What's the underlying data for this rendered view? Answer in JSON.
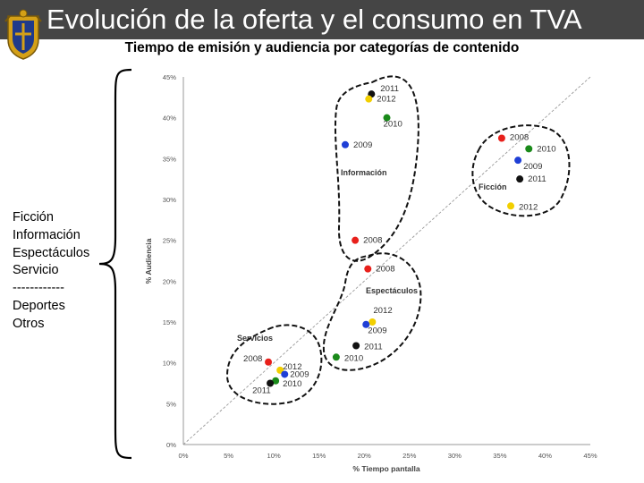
{
  "header": {
    "title": "Evolución de la oferta y el consumo en TVA",
    "subtitle": "Tiempo de emisión y audiencia por categorías de contenido"
  },
  "sidebar": {
    "items": [
      "Ficción",
      "Información",
      "Espectáculos",
      "Servicio",
      "------------",
      "Deportes",
      "Otros"
    ]
  },
  "colors": {
    "title_bar": "#454545",
    "2008": "#e8201b",
    "2009": "#1f3fd6",
    "2010": "#1a8a1a",
    "2011": "#111111",
    "2012": "#f2cf00"
  },
  "chart_data": {
    "type": "scatter",
    "xlabel": "% Tiempo pantalla",
    "ylabel": "% Audiencia",
    "xlim": [
      0,
      45
    ],
    "ylim": [
      0,
      45
    ],
    "xticks": [
      "0%",
      "5%",
      "10%",
      "15%",
      "20%",
      "25%",
      "30%",
      "35%",
      "40%",
      "45%"
    ],
    "yticks": [
      "0%",
      "5%",
      "10%",
      "15%",
      "20%",
      "25%",
      "30%",
      "35%",
      "40%",
      "45%"
    ],
    "grid": false,
    "reference_line": "diagonal y = x",
    "groups": [
      {
        "name": "Información",
        "points": [
          {
            "year": "2011",
            "x": 20.8,
            "y": 42.9
          },
          {
            "year": "2012",
            "x": 20.5,
            "y": 42.3
          },
          {
            "year": "2010",
            "x": 22.5,
            "y": 40.0
          },
          {
            "year": "2009",
            "x": 17.9,
            "y": 36.7
          },
          {
            "year": "2008",
            "x": 19.0,
            "y": 25.0
          }
        ]
      },
      {
        "name": "Ficción",
        "points": [
          {
            "year": "2008",
            "x": 35.2,
            "y": 37.5
          },
          {
            "year": "2010",
            "x": 38.2,
            "y": 36.2
          },
          {
            "year": "2009",
            "x": 37.0,
            "y": 34.8
          },
          {
            "year": "2011",
            "x": 37.2,
            "y": 32.5
          },
          {
            "year": "2012",
            "x": 36.2,
            "y": 29.2
          }
        ]
      },
      {
        "name": "Espectáculos",
        "points": [
          {
            "year": "2008",
            "x": 20.4,
            "y": 21.5
          },
          {
            "year": "2012",
            "x": 20.9,
            "y": 15.0
          },
          {
            "year": "2009",
            "x": 20.2,
            "y": 14.7
          },
          {
            "year": "2011",
            "x": 19.1,
            "y": 12.1
          },
          {
            "year": "2010",
            "x": 16.9,
            "y": 10.7
          }
        ]
      },
      {
        "name": "Servicios",
        "points": [
          {
            "year": "2008",
            "x": 9.4,
            "y": 10.1
          },
          {
            "year": "2012",
            "x": 10.7,
            "y": 9.1
          },
          {
            "year": "2009",
            "x": 11.2,
            "y": 8.6
          },
          {
            "year": "2010",
            "x": 10.2,
            "y": 7.8
          },
          {
            "year": "2011",
            "x": 9.6,
            "y": 7.5
          }
        ]
      }
    ]
  }
}
